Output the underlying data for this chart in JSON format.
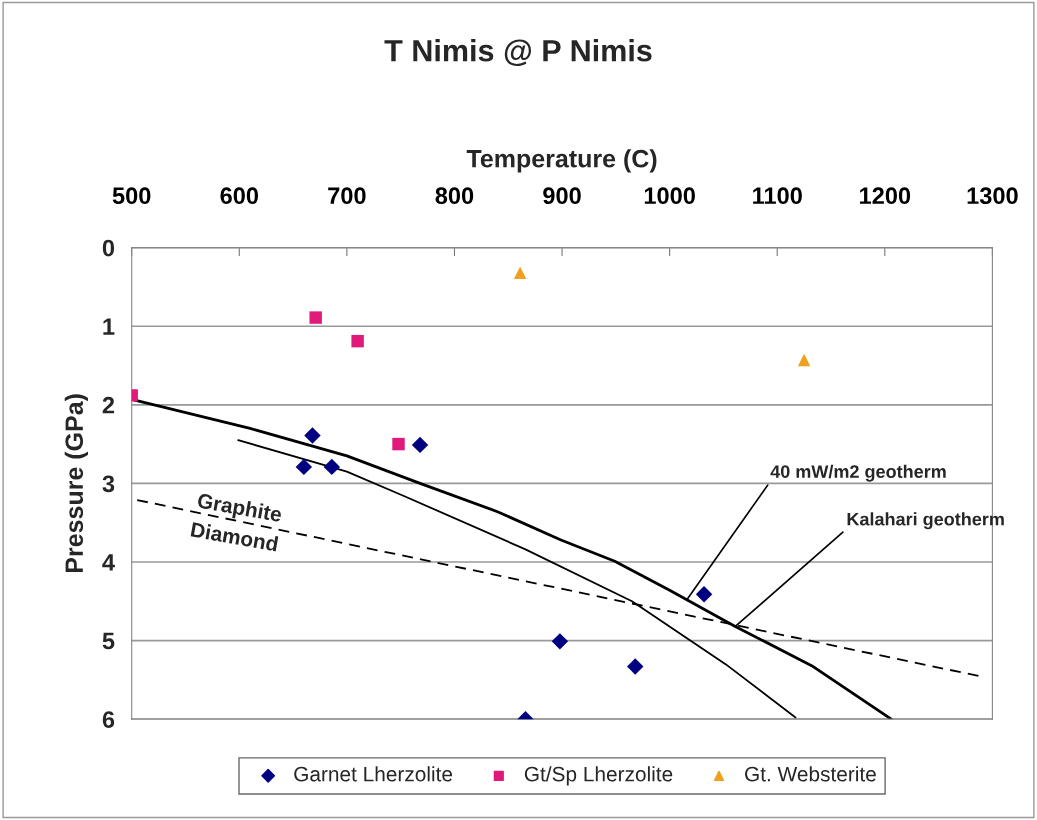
{
  "chart_data": {
    "type": "scatter",
    "title": "T Nimis @ P Nimis",
    "xlabel": "Temperature (C)",
    "ylabel": "Pressure (GPa)",
    "xlim": [
      500,
      1300
    ],
    "xticks": [
      500,
      600,
      700,
      800,
      900,
      1000,
      1100,
      1200,
      1300
    ],
    "ylim": [
      6,
      0
    ],
    "yticks": [
      0,
      1,
      2,
      3,
      4,
      5,
      6
    ],
    "grid": "y",
    "legend": "bottom",
    "series": [
      {
        "name": "Garnet Lherzolite",
        "color": "#000080",
        "marker": "diamond",
        "x": [
          668,
          660,
          686,
          768,
          1032,
          898,
          968,
          866
        ],
        "values": [
          2.39,
          2.79,
          2.79,
          2.51,
          4.41,
          5.01,
          5.33,
          6.0
        ]
      },
      {
        "name": "Gt/Sp Lherzolite",
        "color": "#e0197a",
        "marker": "square",
        "x": [
          500,
          671,
          710,
          748
        ],
        "values": [
          1.88,
          0.89,
          1.19,
          2.5
        ]
      },
      {
        "name": "Gt. Websterite",
        "color": "#f0a020",
        "marker": "triangle",
        "x": [
          861,
          1125
        ],
        "values": [
          0.32,
          1.43
        ]
      },
      {
        "type": "line",
        "color": "#000000",
        "line_style": "solid",
        "x": [
          500,
          610,
          700,
          768,
          840,
          899,
          949,
          1000,
          1061,
          1132,
          1206
        ],
        "values": [
          1.93,
          2.3,
          2.65,
          3.0,
          3.36,
          3.72,
          3.99,
          4.36,
          4.82,
          5.32,
          6.0
        ]
      },
      {
        "type": "line",
        "color": "#000000",
        "line_style": "solid",
        "x": [
          599,
          700,
          753,
          866,
          965,
          1052,
          1117
        ],
        "values": [
          2.45,
          2.85,
          3.16,
          3.84,
          4.5,
          5.3,
          5.98
        ]
      },
      {
        "type": "line",
        "color": "#000000",
        "line_style": "dashed",
        "x": [
          501,
          1287
        ],
        "values": [
          3.2,
          5.45
        ]
      }
    ],
    "annotations": [
      "Graphite",
      "Diamond",
      {
        "text": "40 mW/m2 geotherm",
        "x": 1016,
        "y": 4.48
      },
      {
        "text": "Kalahari geotherm",
        "x": 1061,
        "y": 4.82
      }
    ]
  }
}
